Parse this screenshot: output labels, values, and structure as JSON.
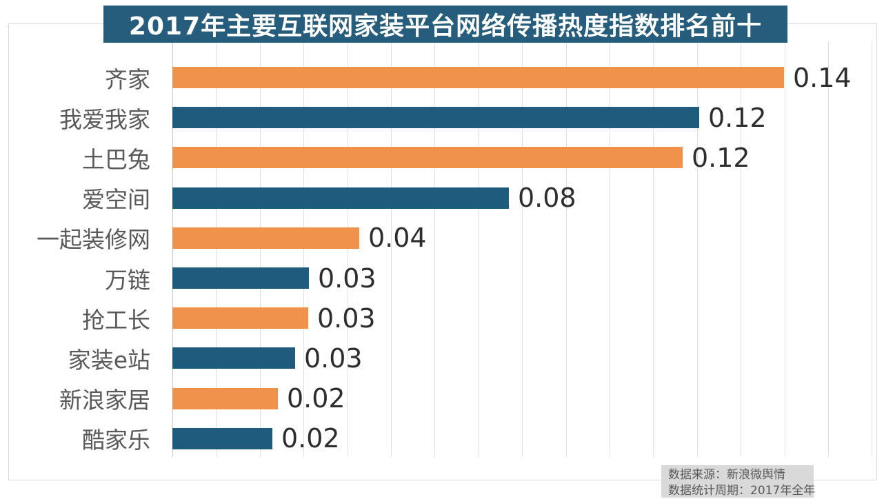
{
  "title": "2017年主要互联网家装平台网络传播热度指数排名前十",
  "source_note": {
    "line1": "数据来源：新浪微舆情",
    "line2": "数据统计周期：2017年全年"
  },
  "colors": {
    "orange": "#f0924b",
    "blue": "#1f5b7c",
    "title_bg": "#275d7c",
    "title_text": "#ffffff",
    "grid": "#e0e0e0",
    "axis": "#c9c9c9",
    "category_text": "#595959",
    "value_text": "#2d2d2d",
    "note_bg": "#d9d9d9",
    "note_text": "#595959",
    "frame_border": "#d9d9d9"
  },
  "chart_data": {
    "type": "bar",
    "orientation": "horizontal",
    "title": "2017年主要互联网家装平台网络传播热度指数排名前十",
    "categories": [
      "齐家",
      "我爱我家",
      "土巴兔",
      "爱空间",
      "一起装修网",
      "万链",
      "抢工长",
      "家装e站",
      "新浪家居",
      "酷家乐"
    ],
    "values": [
      0.14,
      0.12,
      0.12,
      0.08,
      0.04,
      0.03,
      0.03,
      0.03,
      0.02,
      0.02
    ],
    "value_labels": [
      "0.14",
      "0.12",
      "0.12",
      "0.08",
      "0.04",
      "0.03",
      "0.03",
      "0.03",
      "0.02",
      "0.02"
    ],
    "estimated_values": [
      0.1399,
      0.1205,
      0.1167,
      0.077,
      0.0428,
      0.0312,
      0.031,
      0.0281,
      0.0241,
      0.0229
    ],
    "bar_colors": [
      "orange",
      "blue",
      "orange",
      "blue",
      "orange",
      "blue",
      "orange",
      "blue",
      "orange",
      "blue"
    ],
    "xlabel": "",
    "ylabel": "",
    "xlim": [
      0,
      0.16
    ],
    "gridline_interval": 0.01,
    "grid": "vertical",
    "legend": "none",
    "data_label_position": "outside-end"
  }
}
